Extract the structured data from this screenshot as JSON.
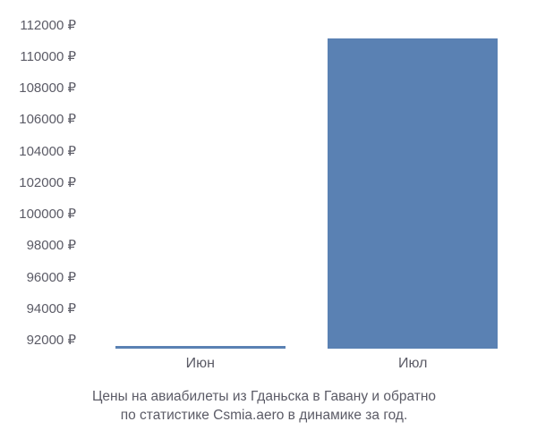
{
  "chart": {
    "type": "bar",
    "background_color": "#ffffff",
    "text_color": "#5b5b66",
    "bar_color": "#5a81b3",
    "y_axis": {
      "min": 92000,
      "visual_max": 113000,
      "tick_step": 2000,
      "ticks": [
        {
          "value": 92000,
          "label": "92000 ₽"
        },
        {
          "value": 94000,
          "label": "94000 ₽"
        },
        {
          "value": 96000,
          "label": "96000 ₽"
        },
        {
          "value": 98000,
          "label": "98000 ₽"
        },
        {
          "value": 100000,
          "label": "100000 ₽"
        },
        {
          "value": 102000,
          "label": "102000 ₽"
        },
        {
          "value": 104000,
          "label": "104000 ₽"
        },
        {
          "value": 106000,
          "label": "106000 ₽"
        },
        {
          "value": 108000,
          "label": "108000 ₽"
        },
        {
          "value": 110000,
          "label": "110000 ₽"
        },
        {
          "value": 112000,
          "label": "112000 ₽"
        }
      ],
      "label_fontsize": 15
    },
    "x_axis": {
      "labels": [
        "Июн",
        "Июл"
      ],
      "label_fontsize": 16
    },
    "series": {
      "categories": [
        "Июн",
        "Июл"
      ],
      "values": [
        92100,
        111700
      ],
      "bar_width_pct": 80
    },
    "caption_line1": "Цены на авиабилеты из Гданьска в Гавану и обратно",
    "caption_line2": "по статистике Csmia.aero в динамике за год.",
    "caption_fontsize": 15.5
  }
}
